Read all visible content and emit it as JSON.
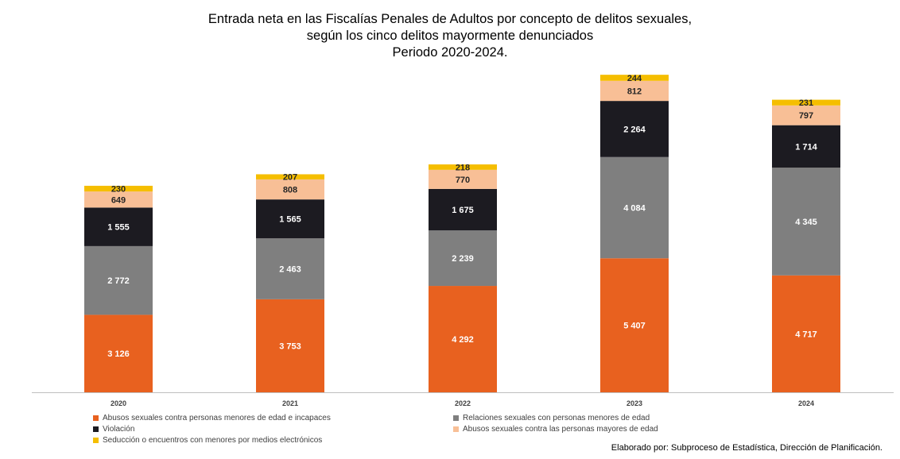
{
  "chart_data": {
    "type": "bar",
    "stacked": true,
    "title": [
      "Entrada neta en las Fiscalías Penales de Adultos por concepto de delitos sexuales,",
      "según los cinco delitos mayormente denunciados",
      "Periodo 2020-2024."
    ],
    "categories": [
      "2020",
      "2021",
      "2022",
      "2023",
      "2024"
    ],
    "series": [
      {
        "name": "Abusos sexuales contra personas menores de edad e incapaces",
        "color": "#E8611F",
        "label_color": "#ffffff",
        "values": [
          3126,
          3753,
          4292,
          5407,
          4717
        ],
        "labels": [
          "3 126",
          "3 753",
          "4 292",
          "5 407",
          "4 717"
        ]
      },
      {
        "name": "Relaciones sexuales con personas menores de edad",
        "color": "#7F7F7F",
        "label_color": "#ffffff",
        "values": [
          2772,
          2463,
          2239,
          4084,
          4345
        ],
        "labels": [
          "2 772",
          "2 463",
          "2 239",
          "4 084",
          "4 345"
        ]
      },
      {
        "name": "Violación",
        "color": "#1C1B21",
        "label_color": "#ffffff",
        "values": [
          1555,
          1565,
          1675,
          2264,
          1714
        ],
        "labels": [
          "1 555",
          "1 565",
          "1 675",
          "2 264",
          "1 714"
        ]
      },
      {
        "name": "Abusos sexuales contra las personas mayores de edad",
        "color": "#F8BF96",
        "label_color": "#262626",
        "values": [
          649,
          808,
          770,
          812,
          797
        ],
        "labels": [
          "649",
          "808",
          "770",
          "812",
          "797"
        ]
      },
      {
        "name": "Seducción o encuentros con menores por medios electrónicos",
        "color": "#F5BE00",
        "label_color": "#262626",
        "values": [
          230,
          207,
          218,
          244,
          231
        ],
        "labels": [
          "230",
          "207",
          "218",
          "244",
          "231"
        ]
      }
    ],
    "xlabel": "",
    "ylabel": "",
    "ylim": [
      0,
      12880
    ],
    "grid": false,
    "legend": "bottom-left"
  },
  "footer": {
    "credit": "Elaborado por: Subproceso de Estadística, Dirección de Planificación."
  }
}
